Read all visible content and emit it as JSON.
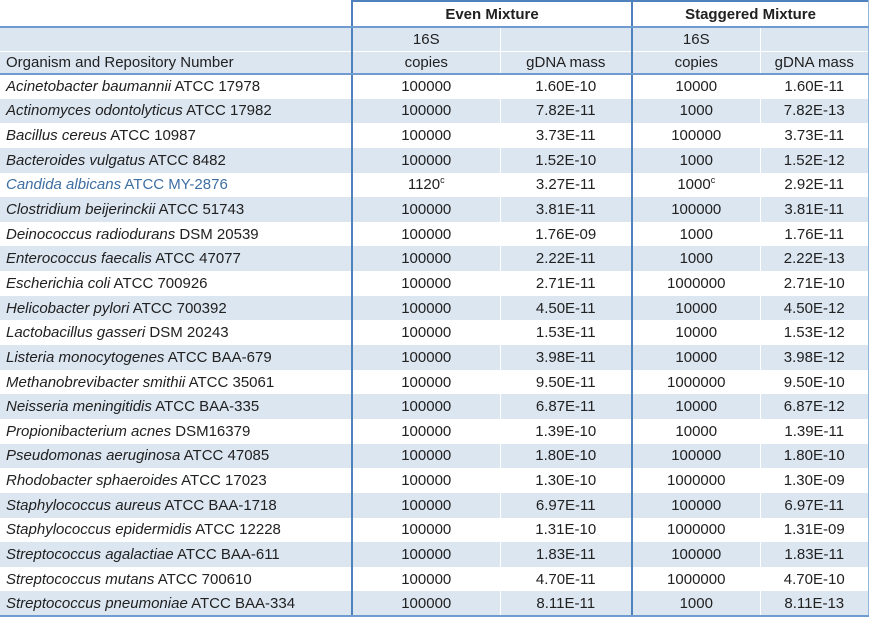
{
  "colors": {
    "group_border": "#4f81bd",
    "band_border": "#6f9bd1",
    "row_stripe": "#dce6f1",
    "highlight_text": "#3e6fa3",
    "edge_border": "#95b3d7"
  },
  "header": {
    "group_even": "Even Mixture",
    "group_staggered": "Staggered Mixture",
    "organism_col": "Organism and Repository Number",
    "sub_16s": "16S",
    "sub_copies": "copies",
    "sub_gdna": "gDNA mass"
  },
  "rows": [
    {
      "name": "Acinetobacter baumannii",
      "strain": "ATCC 17978",
      "even_copies": "100000",
      "even_copies_sup": "",
      "even_gdna": "1.60E-10",
      "stag_copies": "10000",
      "stag_copies_sup": "",
      "stag_gdna": "1.60E-11",
      "highlighted": false
    },
    {
      "name": "Actinomyces odontolyticus",
      "strain": "ATCC 17982",
      "even_copies": "100000",
      "even_copies_sup": "",
      "even_gdna": "7.82E-11",
      "stag_copies": "1000",
      "stag_copies_sup": "",
      "stag_gdna": "7.82E-13",
      "highlighted": false
    },
    {
      "name": "Bacillus cereus",
      "strain": "ATCC 10987",
      "even_copies": "100000",
      "even_copies_sup": "",
      "even_gdna": "3.73E-11",
      "stag_copies": "100000",
      "stag_copies_sup": "",
      "stag_gdna": "3.73E-11",
      "highlighted": false
    },
    {
      "name": "Bacteroides vulgatus",
      "strain": "ATCC 8482",
      "even_copies": "100000",
      "even_copies_sup": "",
      "even_gdna": "1.52E-10",
      "stag_copies": "1000",
      "stag_copies_sup": "",
      "stag_gdna": "1.52E-12",
      "highlighted": false
    },
    {
      "name": "Candida albicans",
      "strain": "ATCC MY-2876",
      "even_copies": "1120",
      "even_copies_sup": "c",
      "even_gdna": "3.27E-11",
      "stag_copies": "1000",
      "stag_copies_sup": "c",
      "stag_gdna": "2.92E-11",
      "highlighted": true
    },
    {
      "name": "Clostridium beijerinckii",
      "strain": "ATCC 51743",
      "even_copies": "100000",
      "even_copies_sup": "",
      "even_gdna": "3.81E-11",
      "stag_copies": "100000",
      "stag_copies_sup": "",
      "stag_gdna": "3.81E-11",
      "highlighted": false
    },
    {
      "name": "Deinococcus radiodurans",
      "strain": "DSM 20539",
      "even_copies": "100000",
      "even_copies_sup": "",
      "even_gdna": "1.76E-09",
      "stag_copies": "1000",
      "stag_copies_sup": "",
      "stag_gdna": "1.76E-11",
      "highlighted": false
    },
    {
      "name": "Enterococcus faecalis",
      "strain": "ATCC 47077",
      "even_copies": "100000",
      "even_copies_sup": "",
      "even_gdna": "2.22E-11",
      "stag_copies": "1000",
      "stag_copies_sup": "",
      "stag_gdna": "2.22E-13",
      "highlighted": false
    },
    {
      "name": "Escherichia coli",
      "strain": "ATCC 700926",
      "even_copies": "100000",
      "even_copies_sup": "",
      "even_gdna": "2.71E-11",
      "stag_copies": "1000000",
      "stag_copies_sup": "",
      "stag_gdna": "2.71E-10",
      "highlighted": false
    },
    {
      "name": "Helicobacter pylori",
      "strain": "ATCC 700392",
      "even_copies": "100000",
      "even_copies_sup": "",
      "even_gdna": "4.50E-11",
      "stag_copies": "10000",
      "stag_copies_sup": "",
      "stag_gdna": "4.50E-12",
      "highlighted": false
    },
    {
      "name": "Lactobacillus gasseri",
      "strain": "DSM 20243",
      "even_copies": "100000",
      "even_copies_sup": "",
      "even_gdna": "1.53E-11",
      "stag_copies": "10000",
      "stag_copies_sup": "",
      "stag_gdna": "1.53E-12",
      "highlighted": false
    },
    {
      "name": "Listeria monocytogenes",
      "strain": "ATCC BAA-679",
      "even_copies": "100000",
      "even_copies_sup": "",
      "even_gdna": "3.98E-11",
      "stag_copies": "10000",
      "stag_copies_sup": "",
      "stag_gdna": "3.98E-12",
      "highlighted": false
    },
    {
      "name": "Methanobrevibacter smithii",
      "strain": "ATCC 35061",
      "even_copies": "100000",
      "even_copies_sup": "",
      "even_gdna": "9.50E-11",
      "stag_copies": "1000000",
      "stag_copies_sup": "",
      "stag_gdna": "9.50E-10",
      "highlighted": false
    },
    {
      "name": "Neisseria meningitidis",
      "strain": "ATCC BAA-335",
      "even_copies": "100000",
      "even_copies_sup": "",
      "even_gdna": "6.87E-11",
      "stag_copies": "10000",
      "stag_copies_sup": "",
      "stag_gdna": "6.87E-12",
      "highlighted": false
    },
    {
      "name": "Propionibacterium acnes",
      "strain": "DSM16379",
      "even_copies": "100000",
      "even_copies_sup": "",
      "even_gdna": "1.39E-10",
      "stag_copies": "10000",
      "stag_copies_sup": "",
      "stag_gdna": "1.39E-11",
      "highlighted": false
    },
    {
      "name": "Pseudomonas aeruginosa",
      "strain": "ATCC 47085",
      "even_copies": "100000",
      "even_copies_sup": "",
      "even_gdna": "1.80E-10",
      "stag_copies": "100000",
      "stag_copies_sup": "",
      "stag_gdna": "1.80E-10",
      "highlighted": false
    },
    {
      "name": "Rhodobacter sphaeroides",
      "strain": "ATCC 17023",
      "even_copies": "100000",
      "even_copies_sup": "",
      "even_gdna": "1.30E-10",
      "stag_copies": "1000000",
      "stag_copies_sup": "",
      "stag_gdna": "1.30E-09",
      "highlighted": false
    },
    {
      "name": "Staphylococcus aureus",
      "strain": "ATCC BAA-1718",
      "even_copies": "100000",
      "even_copies_sup": "",
      "even_gdna": "6.97E-11",
      "stag_copies": "100000",
      "stag_copies_sup": "",
      "stag_gdna": "6.97E-11",
      "highlighted": false
    },
    {
      "name": "Staphylococcus epidermidis",
      "strain": "ATCC 12228",
      "even_copies": "100000",
      "even_copies_sup": "",
      "even_gdna": "1.31E-10",
      "stag_copies": "1000000",
      "stag_copies_sup": "",
      "stag_gdna": "1.31E-09",
      "highlighted": false
    },
    {
      "name": "Streptococcus agalactiae",
      "strain": "ATCC BAA-611",
      "even_copies": "100000",
      "even_copies_sup": "",
      "even_gdna": "1.83E-11",
      "stag_copies": "100000",
      "stag_copies_sup": "",
      "stag_gdna": "1.83E-11",
      "highlighted": false
    },
    {
      "name": "Streptococcus mutans",
      "strain": "ATCC 700610",
      "even_copies": "100000",
      "even_copies_sup": "",
      "even_gdna": "4.70E-11",
      "stag_copies": "1000000",
      "stag_copies_sup": "",
      "stag_gdna": "4.70E-10",
      "highlighted": false
    },
    {
      "name": "Streptococcus pneumoniae",
      "strain": "ATCC BAA-334",
      "even_copies": "100000",
      "even_copies_sup": "",
      "even_gdna": "8.11E-11",
      "stag_copies": "1000",
      "stag_copies_sup": "",
      "stag_gdna": "8.11E-13",
      "highlighted": false
    }
  ]
}
